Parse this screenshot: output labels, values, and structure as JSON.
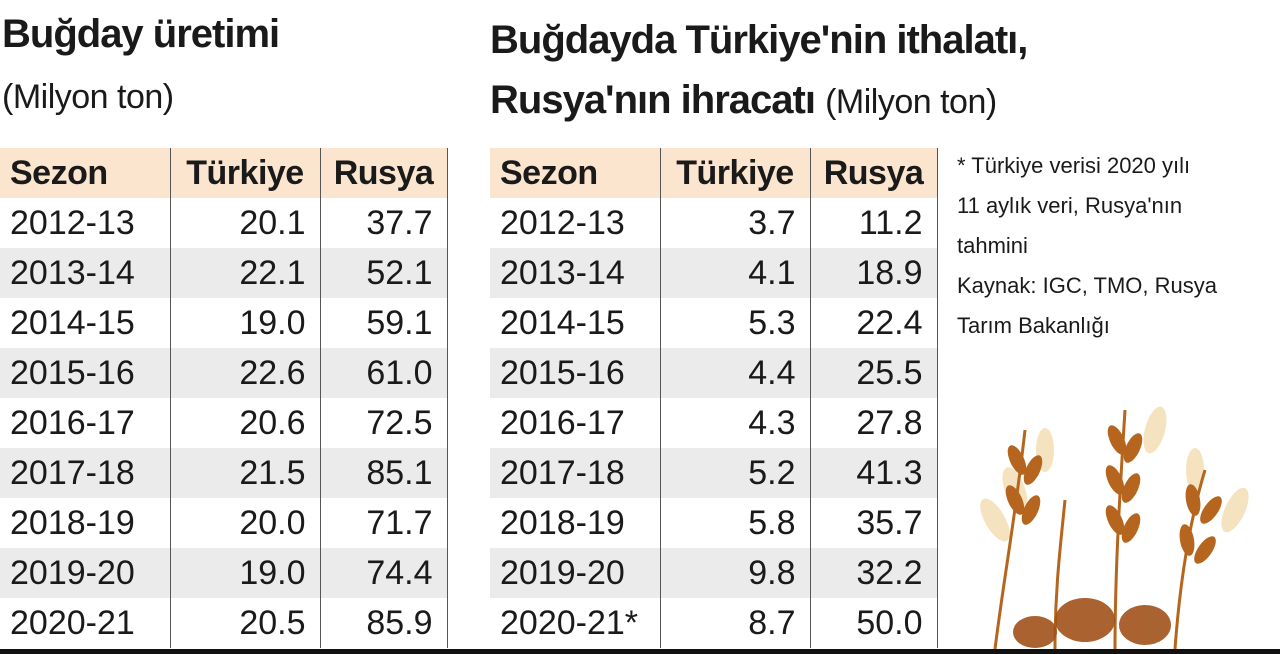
{
  "left": {
    "title": "Buğday üretimi",
    "unit": "(Milyon ton)",
    "table": {
      "header": [
        "Sezon",
        "Türkiye",
        "Rusya"
      ],
      "rows": [
        [
          "2012-13",
          "20.1",
          "37.7"
        ],
        [
          "2013-14",
          "22.1",
          "52.1"
        ],
        [
          "2014-15",
          "19.0",
          "59.1"
        ],
        [
          "2015-16",
          "22.6",
          "61.0"
        ],
        [
          "2016-17",
          "20.6",
          "72.5"
        ],
        [
          "2017-18",
          "21.5",
          "85.1"
        ],
        [
          "2018-19",
          "20.0",
          "71.7"
        ],
        [
          "2019-20",
          "19.0",
          "74.4"
        ],
        [
          "2020-21",
          "20.5",
          "85.9"
        ]
      ]
    }
  },
  "right": {
    "title_line1": "Buğdayda Türkiye'nin ithalatı,",
    "title_line2": "Rusya'nın ihracatı",
    "unit": "(Milyon ton)",
    "table": {
      "header": [
        "Sezon",
        "Türkiye",
        "Rusya"
      ],
      "rows": [
        [
          "2012-13",
          "3.7",
          "11.2"
        ],
        [
          "2013-14",
          "4.1",
          "18.9"
        ],
        [
          "2014-15",
          "5.3",
          "22.4"
        ],
        [
          "2015-16",
          "4.4",
          "25.5"
        ],
        [
          "2016-17",
          "4.3",
          "27.8"
        ],
        [
          "2017-18",
          "5.2",
          "41.3"
        ],
        [
          "2018-19",
          "5.8",
          "35.7"
        ],
        [
          "2019-20",
          "9.8",
          "32.2"
        ],
        [
          "2020-21*",
          "8.7",
          "50.0"
        ]
      ]
    }
  },
  "note": [
    "* Türkiye verisi 2020 yılı",
    "11 aylık veri, Rusya'nın",
    "tahmini",
    "Kaynak: IGC, TMO, Rusya",
    "Tarım Bakanlığı"
  ]
}
